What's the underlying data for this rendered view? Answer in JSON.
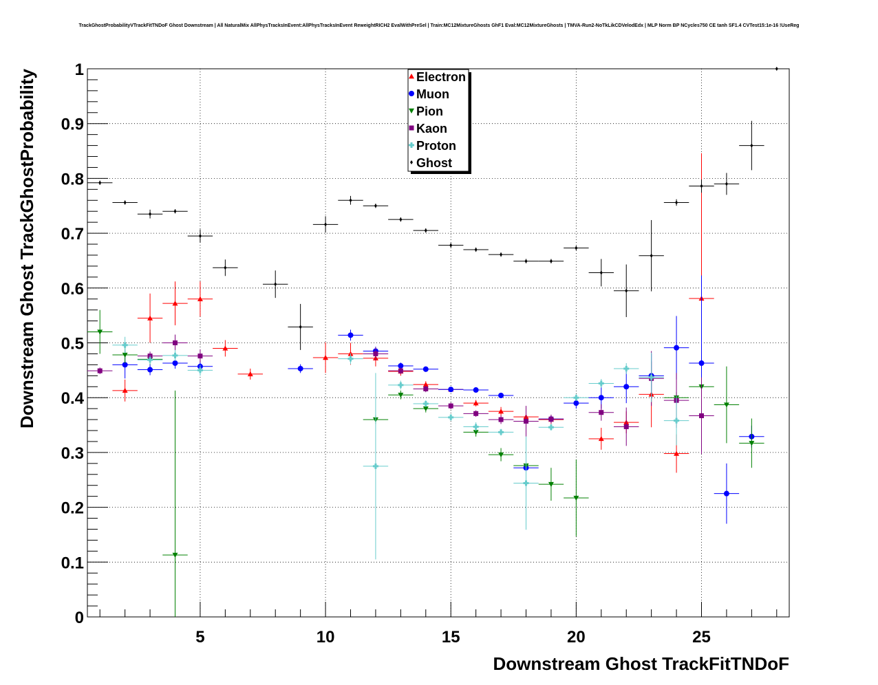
{
  "chart_data": {
    "type": "scatter",
    "title": "TrackGhostProbabilityVTrackFitTNDoF Ghost Downstream | All NaturalMix AllPhysTracksInEvent:AllPhysTracksInEvent ReweightRICH2 EvalWithPreSel | Train:MC12MixtureGhosts GhF1 Eval:MC12MixtureGhosts | TMVA-Run2-NoTkLikCDVelodEdx | MLP Norm BP NCycles750 CE tanh SF1.4 CVTest15:1e-16 !UseReg",
    "xlabel": "Downstream Ghost TrackFitTNDoF",
    "ylabel": "Downstream Ghost TrackGhostProbability",
    "xlim": [
      0.5,
      28.5
    ],
    "ylim": [
      0,
      1
    ],
    "x_ticks": [
      5,
      10,
      15,
      20,
      25
    ],
    "y_ticks": [
      0,
      0.1,
      0.2,
      0.3,
      0.4,
      0.5,
      0.6,
      0.7,
      0.8,
      0.9,
      1
    ],
    "grid": true,
    "legend_position": "top-center",
    "series": [
      {
        "name": "Electron",
        "color": "#ff0000",
        "marker": "triangle-up",
        "points": [
          [
            2,
            0.413,
            0.02
          ],
          [
            3,
            0.545,
            0.045
          ],
          [
            4,
            0.572,
            0.04
          ],
          [
            5,
            0.58,
            0.032
          ],
          [
            6,
            0.49,
            0.015
          ],
          [
            7,
            0.443,
            0.01
          ],
          [
            10,
            0.473,
            0.028
          ],
          [
            11,
            0.48,
            0.02
          ],
          [
            12,
            0.472,
            0.015
          ],
          [
            13,
            0.448,
            0.008
          ],
          [
            14,
            0.424,
            0.006
          ],
          [
            15,
            0.415,
            0.004
          ],
          [
            16,
            0.39,
            0.006
          ],
          [
            17,
            0.375,
            0.008
          ],
          [
            18,
            0.365,
            0.01
          ],
          [
            19,
            0.36,
            0.008
          ],
          [
            21,
            0.325,
            0.02
          ],
          [
            22,
            0.355,
            0.02
          ],
          [
            23,
            0.406,
            0.06
          ],
          [
            24,
            0.298,
            0.035
          ],
          [
            25,
            0.581,
            0.265
          ]
        ]
      },
      {
        "name": "Muon",
        "color": "#0000ff",
        "marker": "circle",
        "points": [
          [
            2,
            0.46,
            0.025
          ],
          [
            3,
            0.451,
            0.01
          ],
          [
            4,
            0.463,
            0.01
          ],
          [
            5,
            0.457,
            0.01
          ],
          [
            9,
            0.453,
            0.008
          ],
          [
            11,
            0.514,
            0.01
          ],
          [
            12,
            0.485,
            0.008
          ],
          [
            13,
            0.458,
            0.006
          ],
          [
            14,
            0.452,
            0.005
          ],
          [
            15,
            0.415,
            0.004
          ],
          [
            16,
            0.414,
            0.004
          ],
          [
            17,
            0.404,
            0.004
          ],
          [
            18,
            0.272,
            0.02
          ],
          [
            19,
            0.361,
            0.006
          ],
          [
            20,
            0.39,
            0.01
          ],
          [
            21,
            0.4,
            0.02
          ],
          [
            22,
            0.42,
            0.03
          ],
          [
            23,
            0.44,
            0.04
          ],
          [
            24,
            0.491,
            0.058
          ],
          [
            25,
            0.463,
            0.16
          ],
          [
            26,
            0.225,
            0.055
          ],
          [
            27,
            0.329,
            0.02
          ]
        ]
      },
      {
        "name": "Pion",
        "color": "#008000",
        "marker": "triangle-down",
        "points": [
          [
            1,
            0.52,
            0.04
          ],
          [
            2,
            0.478,
            0.015
          ],
          [
            3,
            0.47,
            0.01
          ],
          [
            4,
            0.113,
            0.3
          ],
          [
            12,
            0.36,
            0.008
          ],
          [
            13,
            0.405,
            0.008
          ],
          [
            14,
            0.38,
            0.007
          ],
          [
            16,
            0.337,
            0.008
          ],
          [
            17,
            0.296,
            0.012
          ],
          [
            18,
            0.276,
            0.012
          ],
          [
            19,
            0.242,
            0.03
          ],
          [
            20,
            0.217,
            0.07
          ],
          [
            24,
            0.4,
            0.01
          ],
          [
            25,
            0.42,
            0.01
          ],
          [
            26,
            0.387,
            0.07
          ],
          [
            27,
            0.317,
            0.045
          ]
        ]
      },
      {
        "name": "Kaon",
        "color": "#800080",
        "marker": "square",
        "points": [
          [
            1,
            0.449,
            0.006
          ],
          [
            3,
            0.476,
            0.008
          ],
          [
            4,
            0.5,
            0.015
          ],
          [
            5,
            0.476,
            0.012
          ],
          [
            12,
            0.48,
            0.012
          ],
          [
            13,
            0.449,
            0.006
          ],
          [
            14,
            0.416,
            0.006
          ],
          [
            15,
            0.385,
            0.006
          ],
          [
            16,
            0.371,
            0.006
          ],
          [
            17,
            0.36,
            0.008
          ],
          [
            18,
            0.357,
            0.028
          ],
          [
            19,
            0.361,
            0.008
          ],
          [
            21,
            0.373,
            0.015
          ],
          [
            22,
            0.347,
            0.035
          ],
          [
            23,
            0.435,
            0.05
          ],
          [
            24,
            0.395,
            0.05
          ],
          [
            25,
            0.367,
            0.07
          ]
        ]
      },
      {
        "name": "Proton",
        "color": "#66cccc",
        "marker": "cross",
        "points": [
          [
            2,
            0.496,
            0.015
          ],
          [
            3,
            0.469,
            0.008
          ],
          [
            4,
            0.477,
            0.01
          ],
          [
            5,
            0.45,
            0.01
          ],
          [
            11,
            0.471,
            0.01
          ],
          [
            12,
            0.275,
            0.17
          ],
          [
            13,
            0.423,
            0.008
          ],
          [
            14,
            0.389,
            0.006
          ],
          [
            15,
            0.364,
            0.006
          ],
          [
            16,
            0.347,
            0.008
          ],
          [
            17,
            0.337,
            0.006
          ],
          [
            18,
            0.244,
            0.085
          ],
          [
            19,
            0.346,
            0.006
          ],
          [
            20,
            0.4,
            0.006
          ],
          [
            21,
            0.426,
            0.008
          ],
          [
            22,
            0.453,
            0.01
          ],
          [
            23,
            0.437,
            0.045
          ],
          [
            24,
            0.358,
            0.045
          ]
        ]
      },
      {
        "name": "Ghost",
        "color": "#000000",
        "marker": "diamond",
        "points": [
          [
            1,
            0.792,
            0.004
          ],
          [
            2,
            0.756,
            0.004
          ],
          [
            3,
            0.735,
            0.008
          ],
          [
            4,
            0.74,
            0.004
          ],
          [
            5,
            0.695,
            0.012
          ],
          [
            6,
            0.637,
            0.015
          ],
          [
            8,
            0.607,
            0.025
          ],
          [
            9,
            0.529,
            0.042
          ],
          [
            10,
            0.716,
            0.015
          ],
          [
            11,
            0.76,
            0.008
          ],
          [
            12,
            0.75,
            0.004
          ],
          [
            13,
            0.725,
            0.004
          ],
          [
            14,
            0.705,
            0.004
          ],
          [
            15,
            0.678,
            0.004
          ],
          [
            16,
            0.67,
            0.004
          ],
          [
            17,
            0.661,
            0.004
          ],
          [
            18,
            0.649,
            0.004
          ],
          [
            19,
            0.649,
            0.004
          ],
          [
            20,
            0.673,
            0.004
          ],
          [
            21,
            0.628,
            0.025
          ],
          [
            22,
            0.595,
            0.048
          ],
          [
            23,
            0.659,
            0.065
          ],
          [
            24,
            0.756,
            0.006
          ],
          [
            25,
            0.786,
            0.012
          ],
          [
            26,
            0.79,
            0.02
          ],
          [
            27,
            0.86,
            0.045
          ],
          [
            28,
            1.0,
            0.002
          ]
        ]
      }
    ]
  }
}
